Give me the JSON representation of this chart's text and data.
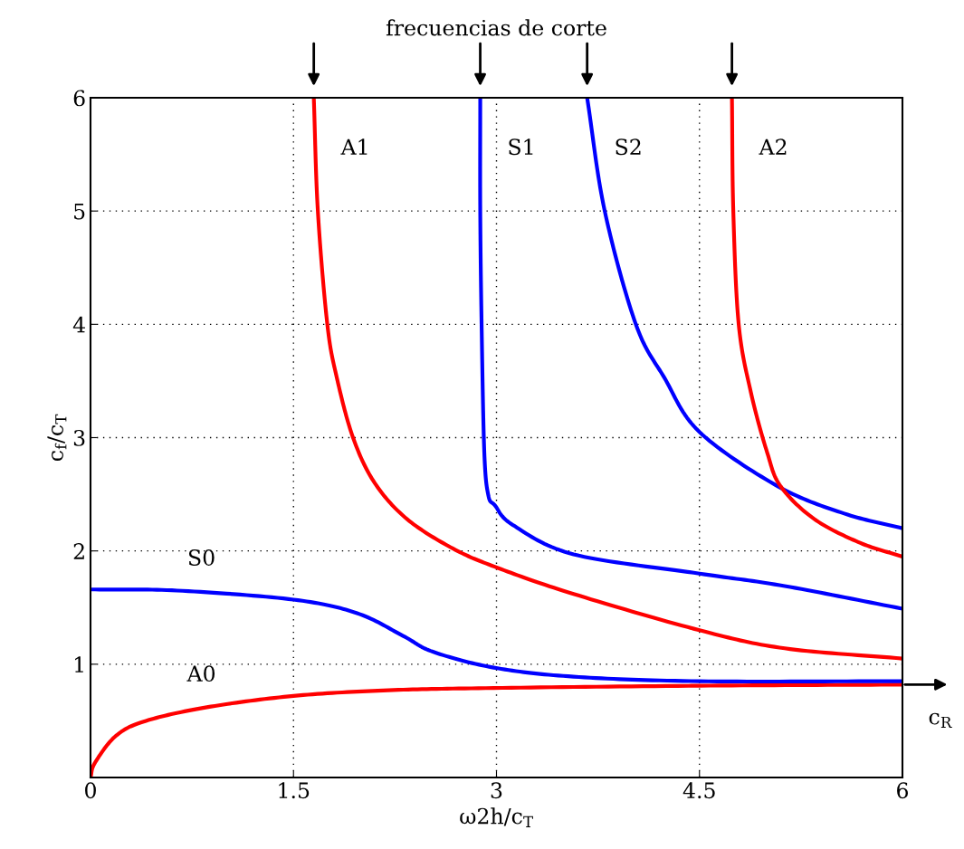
{
  "chart_data": {
    "type": "line",
    "xlabel": "ω2h/c$_{T}$",
    "ylabel": "c$_{f}$/c$_{T}$",
    "xlim": [
      0,
      6
    ],
    "ylim": [
      0,
      6
    ],
    "xticks": [
      0,
      1.5,
      3,
      4.5,
      6
    ],
    "yticks": [
      1,
      2,
      3,
      4,
      5,
      6
    ],
    "grid": true,
    "series": [
      {
        "name": "A0",
        "color": "#ff0000",
        "x": [
          0,
          0.033,
          0.19,
          0.41,
          0.86,
          1.5,
          2.2,
          2.98,
          4.5,
          6
        ],
        "values": [
          0,
          0.13,
          0.37,
          0.5,
          0.62,
          0.72,
          0.77,
          0.79,
          0.81,
          0.82
        ]
      },
      {
        "name": "S0",
        "color": "#0000ff",
        "x": [
          0,
          0.64,
          1.5,
          1.97,
          2.31,
          2.53,
          2.98,
          3.57,
          4.5,
          6
        ],
        "values": [
          1.66,
          1.65,
          1.57,
          1.45,
          1.25,
          1.11,
          0.97,
          0.89,
          0.85,
          0.85
        ]
      },
      {
        "name": "A1",
        "color": "#ff0000",
        "x": [
          1.65,
          1.68,
          1.75,
          1.82,
          1.94,
          2.1,
          2.34,
          2.68,
          3.01,
          3.57,
          4.5,
          5.13,
          6
        ],
        "values": [
          6,
          5,
          4,
          3.53,
          3.0,
          2.6,
          2.28,
          2.02,
          1.85,
          1.62,
          1.3,
          1.14,
          1.05
        ]
      },
      {
        "name": "S1",
        "color": "#0000ff",
        "x": [
          2.88,
          2.88,
          2.89,
          2.91,
          2.94,
          2.99,
          3.12,
          3.57,
          4.5,
          5.13,
          6
        ],
        "values": [
          6,
          5,
          4,
          2.87,
          2.49,
          2.4,
          2.23,
          1.97,
          1.8,
          1.69,
          1.49
        ]
      },
      {
        "name": "S2",
        "color": "#0000ff",
        "x": [
          3.67,
          3.8,
          4.03,
          4.24,
          4.5,
          5.08,
          5.57,
          6
        ],
        "values": [
          6,
          5,
          4,
          3.53,
          3.05,
          2.57,
          2.33,
          2.2
        ]
      },
      {
        "name": "A2",
        "color": "#ff0000",
        "x": [
          4.74,
          4.75,
          4.79,
          4.88,
          5.0,
          5.1,
          5.35,
          5.69,
          6
        ],
        "values": [
          6,
          5,
          4,
          3.4,
          2.87,
          2.57,
          2.28,
          2.07,
          1.95
        ]
      }
    ],
    "annotations": [
      "frecuencias de corte",
      {
        "text": "c$_{R}$",
        "x": 6,
        "y": 0.82
      }
    ]
  }
}
